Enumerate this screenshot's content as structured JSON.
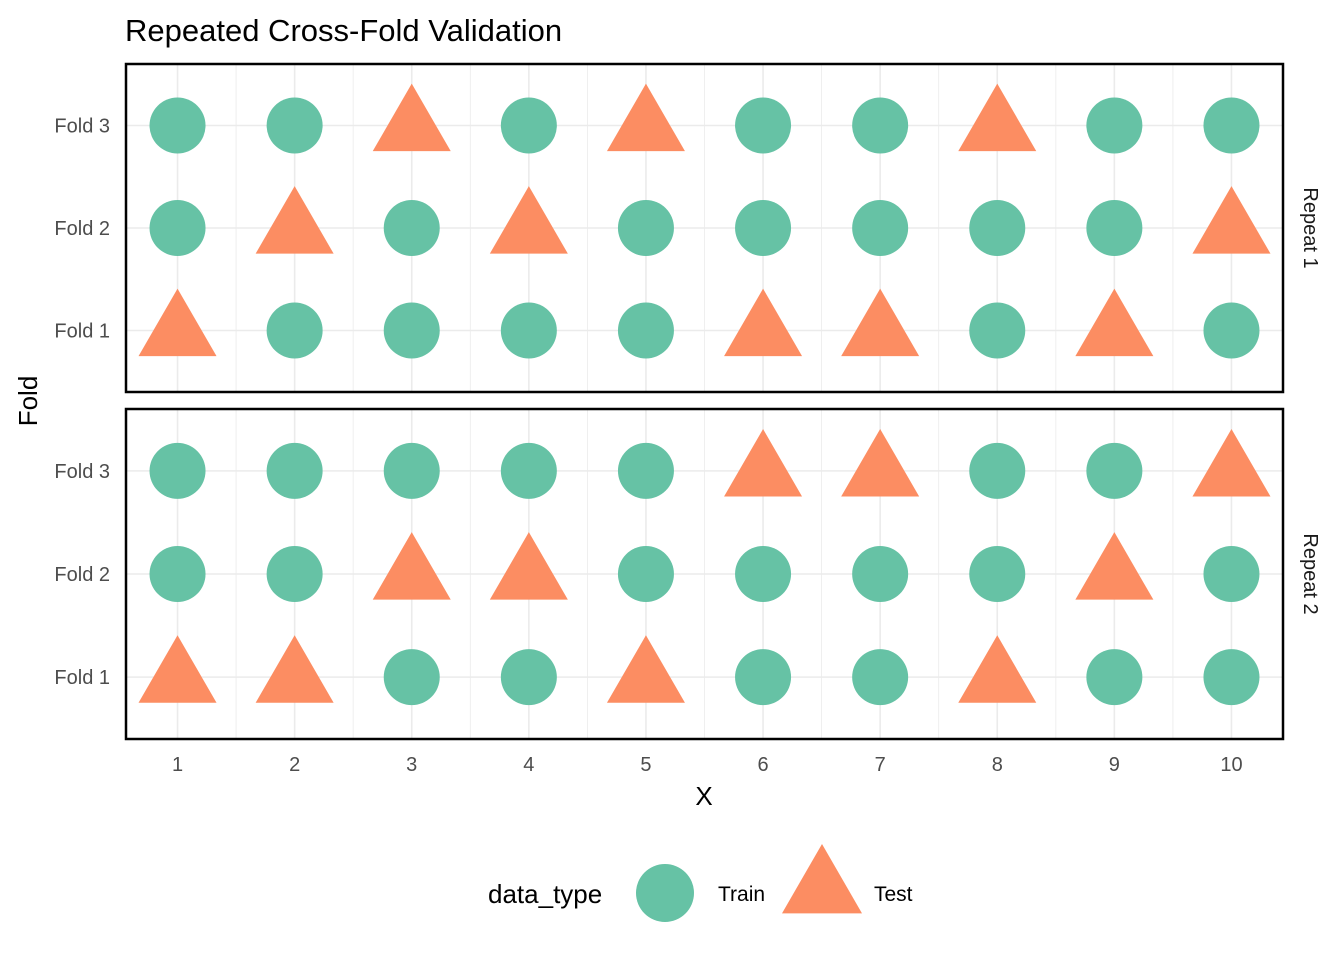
{
  "chart_data": {
    "type": "scatter",
    "title": "Repeated Cross-Fold Validation",
    "xlabel": "X",
    "ylabel": "Fold",
    "x": [
      1,
      2,
      3,
      4,
      5,
      6,
      7,
      8,
      9,
      10
    ],
    "xlim": [
      0.56,
      10.44
    ],
    "y_categories": [
      "Fold 1",
      "Fold 2",
      "Fold 3"
    ],
    "grid": true,
    "legend": {
      "title": "data_type",
      "position": "bottom",
      "entries": [
        {
          "label": "Train",
          "shape": "circle",
          "color": "#66C2A5"
        },
        {
          "label": "Test",
          "shape": "triangle",
          "color": "#FC8D62"
        }
      ]
    },
    "facets": [
      {
        "label": "Repeat 1",
        "folds": {
          "Fold 3": [
            "Train",
            "Train",
            "Test",
            "Train",
            "Test",
            "Train",
            "Train",
            "Test",
            "Train",
            "Train"
          ],
          "Fold 2": [
            "Train",
            "Test",
            "Train",
            "Test",
            "Train",
            "Train",
            "Train",
            "Train",
            "Train",
            "Test"
          ],
          "Fold 1": [
            "Test",
            "Train",
            "Train",
            "Train",
            "Train",
            "Test",
            "Test",
            "Train",
            "Test",
            "Train"
          ]
        }
      },
      {
        "label": "Repeat 2",
        "folds": {
          "Fold 3": [
            "Train",
            "Train",
            "Train",
            "Train",
            "Train",
            "Test",
            "Test",
            "Train",
            "Train",
            "Test"
          ],
          "Fold 2": [
            "Train",
            "Train",
            "Test",
            "Test",
            "Train",
            "Train",
            "Train",
            "Train",
            "Test",
            "Train"
          ],
          "Fold 1": [
            "Test",
            "Test",
            "Train",
            "Train",
            "Test",
            "Train",
            "Train",
            "Test",
            "Train",
            "Train"
          ]
        }
      }
    ]
  }
}
